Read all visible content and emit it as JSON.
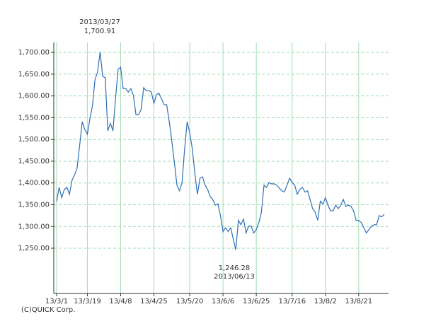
{
  "chart_data": {
    "type": "line",
    "categories": [
      "13/3/1",
      null,
      null,
      null,
      null,
      null,
      null,
      null,
      null,
      null,
      null,
      null,
      "13/3/19",
      null,
      null,
      null,
      null,
      null,
      null,
      null,
      null,
      null,
      null,
      null,
      null,
      "13/4/8",
      null,
      null,
      null,
      null,
      null,
      null,
      null,
      null,
      null,
      null,
      null,
      null,
      "13/4/25",
      null,
      null,
      null,
      null,
      null,
      null,
      null,
      null,
      null,
      null,
      null,
      null,
      null,
      "13/5/20",
      null,
      null,
      null,
      null,
      null,
      null,
      null,
      null,
      null,
      null,
      null,
      null,
      "13/6/6",
      null,
      null,
      null,
      null,
      null,
      null,
      null,
      null,
      null,
      null,
      null,
      null,
      "13/6/25",
      null,
      null,
      null,
      null,
      null,
      null,
      null,
      null,
      null,
      null,
      null,
      null,
      null,
      "13/7/16",
      null,
      null,
      null,
      null,
      null,
      null,
      null,
      null,
      null,
      null,
      null,
      null,
      "13/8/2",
      null,
      null,
      null,
      null,
      null,
      null,
      null,
      null,
      null,
      null,
      null,
      null,
      "13/8/21",
      null,
      null,
      null,
      null,
      null,
      null,
      null,
      null,
      null,
      null
    ],
    "values": [
      1358,
      1390,
      1366,
      1385,
      1390,
      1374,
      1406,
      1418,
      1434,
      1487,
      1541,
      1523,
      1512,
      1547,
      1577,
      1638,
      1655,
      1700.91,
      1645,
      1642,
      1520,
      1537,
      1520,
      1593,
      1661,
      1666,
      1617,
      1617,
      1609,
      1617,
      1601,
      1557,
      1557,
      1569,
      1619,
      1612,
      1612,
      1609,
      1583,
      1603,
      1606,
      1593,
      1580,
      1580,
      1541,
      1496,
      1447,
      1395,
      1382,
      1401,
      1479,
      1541,
      1515,
      1479,
      1422,
      1374,
      1411,
      1414,
      1395,
      1385,
      1369,
      1362,
      1349,
      1352,
      1325,
      1288,
      1297,
      1288,
      1297,
      1271,
      1246.28,
      1314,
      1304,
      1317,
      1285,
      1301,
      1301,
      1285,
      1293,
      1309,
      1333,
      1395,
      1390,
      1401,
      1398,
      1398,
      1395,
      1388,
      1382,
      1379,
      1395,
      1411,
      1401,
      1395,
      1374,
      1385,
      1390,
      1379,
      1382,
      1362,
      1341,
      1333,
      1314,
      1358,
      1352,
      1366,
      1349,
      1336,
      1336,
      1349,
      1341,
      1349,
      1362,
      1346,
      1349,
      1346,
      1336,
      1314,
      1314,
      1309,
      1297,
      1285,
      1293,
      1301,
      1304,
      1304,
      1325,
      1322,
      1328
    ],
    "color": "#2f6fb5",
    "ylim": [
      1146,
      1723
    ],
    "yticks": [
      {
        "value": 1250,
        "label": "1,250.00"
      },
      {
        "value": 1300,
        "label": "1,300.00"
      },
      {
        "value": 1350,
        "label": "1,350.00"
      },
      {
        "value": 1400,
        "label": "1,400.00"
      },
      {
        "value": 1450,
        "label": "1,450.00"
      },
      {
        "value": 1500,
        "label": "1,500.00"
      },
      {
        "value": 1550,
        "label": "1,550.00"
      },
      {
        "value": 1600,
        "label": "1,600.00"
      },
      {
        "value": 1650,
        "label": "1,650.00"
      },
      {
        "value": 1700,
        "label": "1,700.00"
      }
    ],
    "grid": true,
    "grid_color": "#9fdcb4",
    "high_annotation": [
      "2013/03/27",
      "1,700.91"
    ],
    "low_annotation": [
      "1,246.28",
      "2013/06/13"
    ],
    "copyright": "(C)QUICK Corp."
  }
}
